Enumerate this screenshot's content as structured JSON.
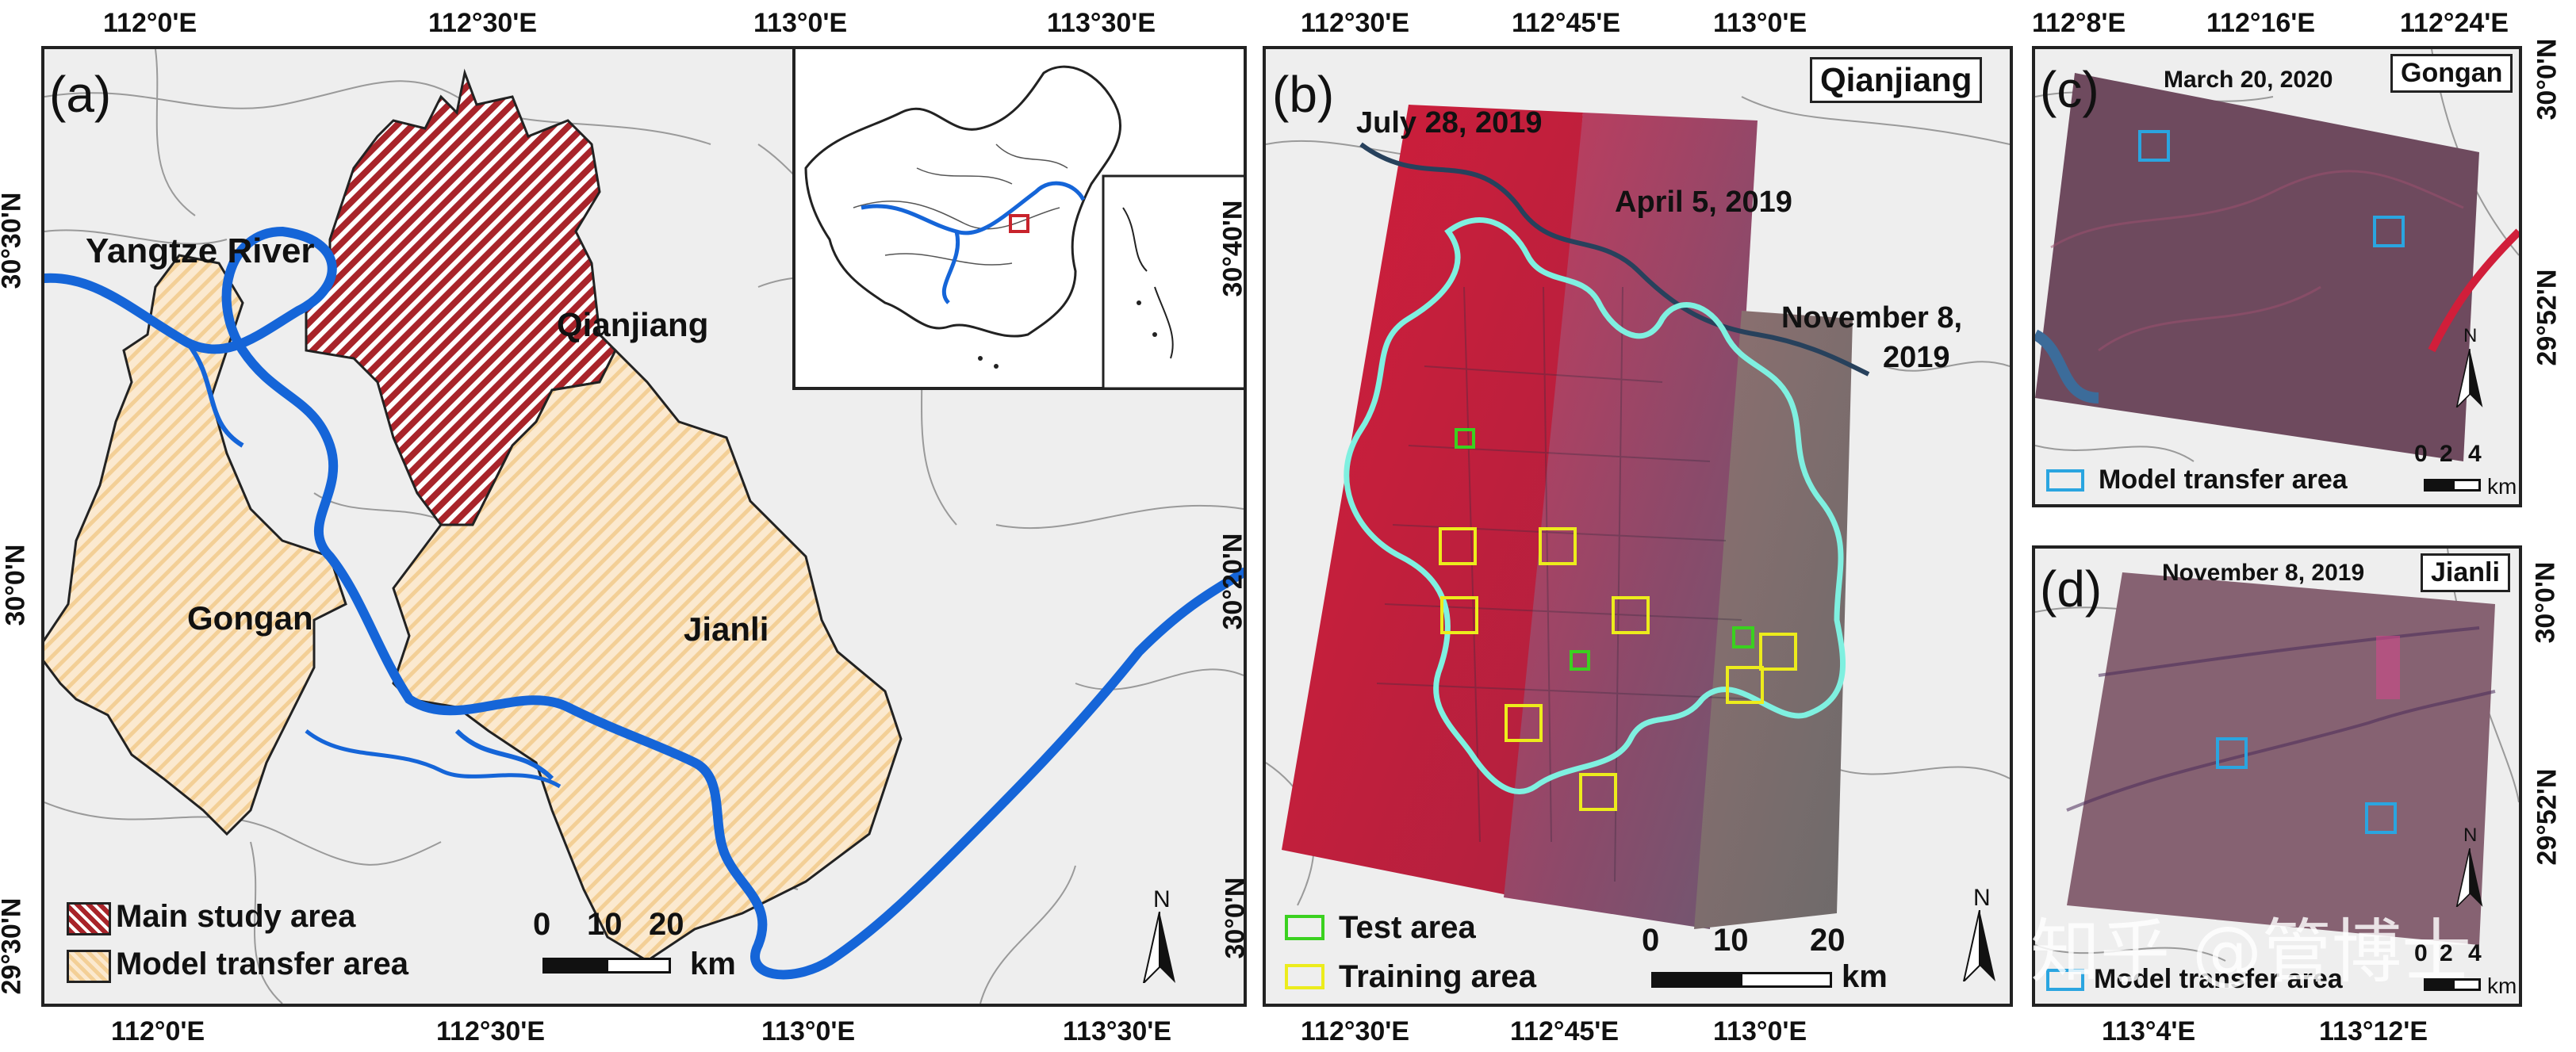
{
  "panel_a": {
    "label": "(a)",
    "top_ticks": [
      "112°0'E",
      "112°30'E",
      "113°0'E",
      "113°30'E"
    ],
    "bottom_ticks": [
      "112°0'E",
      "112°30'E",
      "113°0'E",
      "113°30'E"
    ],
    "left_ticks": [
      "30°30'N",
      "30°0'N",
      "29°30'N"
    ],
    "river_label": "Yangtze River",
    "regions": {
      "qianjiang": "Qianjiang",
      "gongan": "Gongan",
      "jianli": "Jianli"
    },
    "legend": {
      "main": "Main study area",
      "transfer": "Model transfer area"
    },
    "scale": {
      "n0": "0",
      "n1": "10",
      "n2": "20",
      "unit": "km"
    },
    "north": "N",
    "colors": {
      "main": "#a8242a",
      "transfer": "#f5d7a6",
      "river": "#1565d8"
    }
  },
  "panel_b": {
    "label": "(b)",
    "title": "Qianjiang",
    "top_ticks": [
      "112°30'E",
      "112°45'E",
      "113°0'E"
    ],
    "bottom_ticks": [
      "112°30'E",
      "112°45'E",
      "113°0'E"
    ],
    "left_ticks": [
      "30°40'N",
      "30°20'N",
      "30°0'N"
    ],
    "dates": {
      "d1": "July 28, 2019",
      "d2": "April 5, 2019",
      "d3a": "November 8,",
      "d3b": "2019"
    },
    "legend": {
      "test": "Test area",
      "training": "Training area"
    },
    "scale": {
      "n0": "0",
      "n1": "10",
      "n2": "20",
      "unit": "km"
    },
    "north": "N",
    "colors": {
      "test": "#3ad11f",
      "training": "#ecec1c",
      "boundary": "#7ff0e0"
    }
  },
  "panel_c": {
    "label": "(c)",
    "title": "Gongan",
    "date": "March 20, 2020",
    "top_ticks": [
      "112°8'E",
      "112°16'E",
      "112°24'E"
    ],
    "right_ticks": [
      "30°0'N",
      "29°52'N"
    ],
    "legend": "Model transfer area",
    "scale": {
      "n0": "0",
      "n1": "2",
      "n2": "4",
      "unit": "km"
    },
    "north": "N"
  },
  "panel_d": {
    "label": "(d)",
    "title": "Jianli",
    "date": "November 8, 2019",
    "bottom_ticks": [
      "113°4'E",
      "113°12'E"
    ],
    "right_ticks": [
      "30°0'N",
      "29°52'N"
    ],
    "legend": "Model transfer area",
    "scale": {
      "n0": "0",
      "n1": "2",
      "n2": "4",
      "unit": "km"
    },
    "north": "N"
  },
  "watermark": "知乎 @管博士"
}
